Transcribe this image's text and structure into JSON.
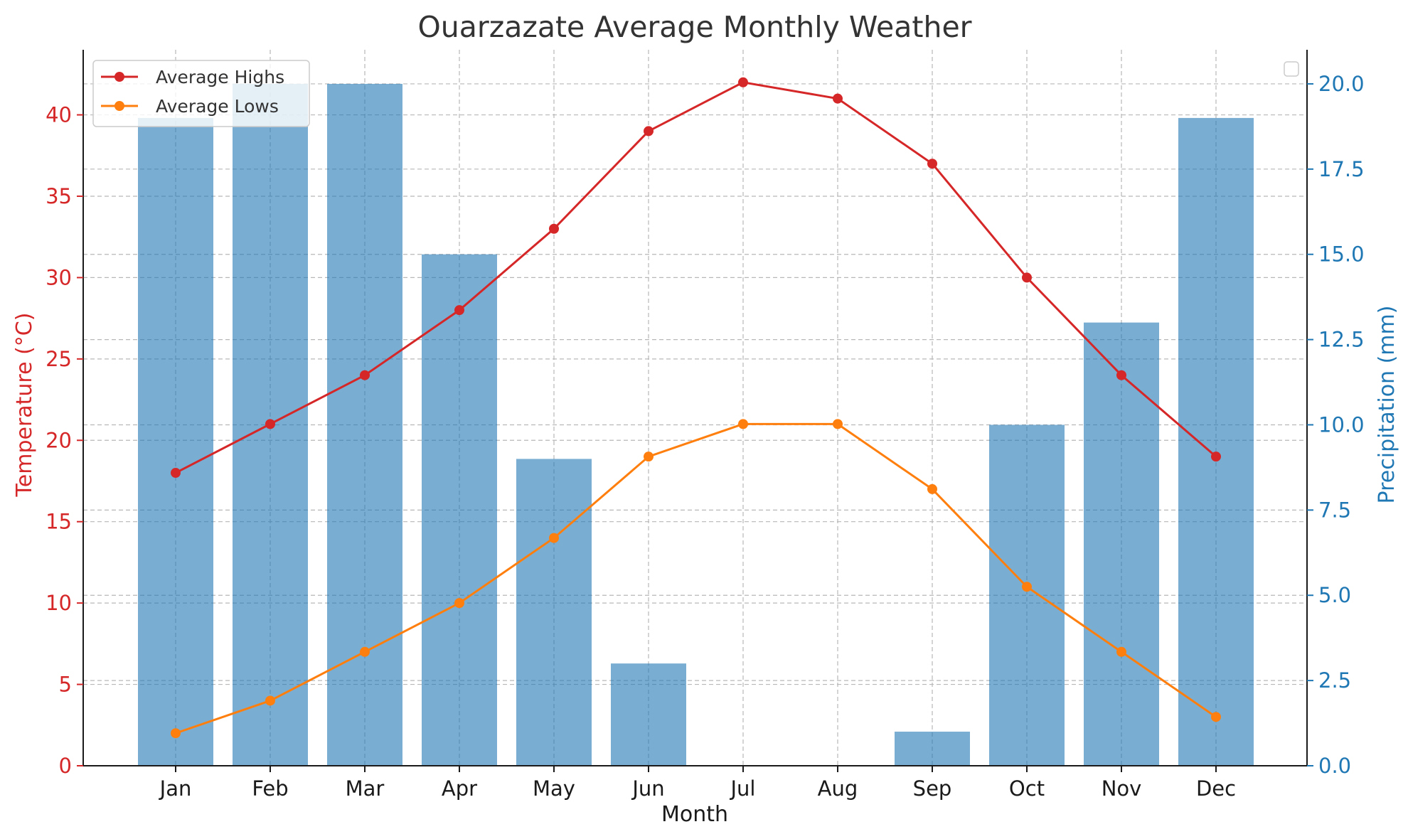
{
  "chart_data": {
    "type": "bar",
    "title": "Ouarzazate Average Monthly Weather",
    "xlabel": "Month",
    "ylabel": "Temperature (°C)",
    "ylabel_right": "Precipitation (mm)",
    "categories": [
      "Jan",
      "Feb",
      "Mar",
      "Apr",
      "May",
      "Jun",
      "Jul",
      "Aug",
      "Sep",
      "Oct",
      "Nov",
      "Dec"
    ],
    "ylim": [
      0,
      44
    ],
    "ylim_right": [
      0,
      21
    ],
    "yticks_left": [
      0,
      5,
      10,
      15,
      20,
      25,
      30,
      35,
      40
    ],
    "yticks_right": [
      "0.0",
      "2.5",
      "5.0",
      "7.5",
      "10.0",
      "12.5",
      "15.0",
      "17.5",
      "20.0"
    ],
    "grid": true,
    "legend": {
      "placement": "top-left"
    },
    "series": [
      {
        "name": "Average Highs",
        "type": "line",
        "axis": "left",
        "color": "#d62728",
        "values": [
          18,
          21,
          24,
          28,
          33,
          39,
          42,
          41,
          37,
          30,
          24,
          19
        ]
      },
      {
        "name": "Average Lows",
        "type": "line",
        "axis": "left",
        "color": "#ff7f0e",
        "values": [
          2,
          4,
          7,
          10,
          14,
          19,
          21,
          21,
          17,
          11,
          7,
          3
        ]
      },
      {
        "type": "bar",
        "axis": "right",
        "color": "#1f77b4",
        "values": [
          19,
          20,
          20,
          15,
          9,
          3,
          0,
          0,
          1,
          10,
          13,
          19
        ]
      }
    ],
    "colors": {
      "left_axis": "#d62728",
      "right_axis": "#1f77b4",
      "bar_fill": "#1f77b4"
    }
  }
}
